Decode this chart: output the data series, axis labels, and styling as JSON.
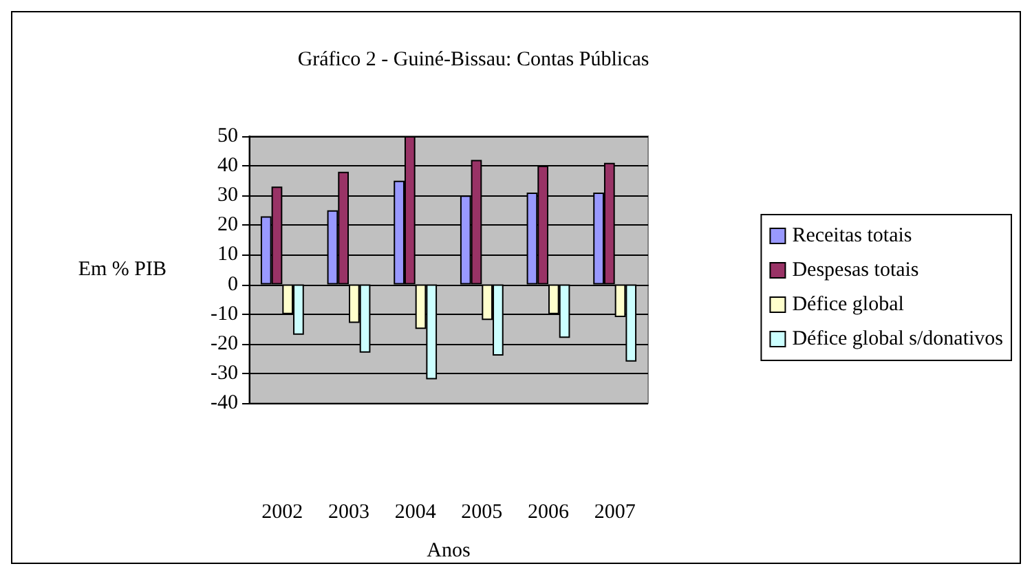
{
  "chart_data": {
    "type": "bar",
    "title": "Gráfico 2 - Guiné-Bissau: Contas Públicas",
    "xlabel": "Anos",
    "ylabel": "Em % PIB",
    "categories": [
      "2002",
      "2003",
      "2004",
      "2005",
      "2006",
      "2007"
    ],
    "series": [
      {
        "name": "Receitas totais",
        "color": "#9999ff",
        "values": [
          23,
          25,
          35,
          30,
          31,
          31
        ]
      },
      {
        "name": "Despesas totais",
        "color": "#993366",
        "values": [
          33,
          38,
          50,
          42,
          40,
          41
        ]
      },
      {
        "name": "Défice global",
        "color": "#ffffcc",
        "values": [
          -10,
          -13,
          -15,
          -12,
          -10,
          -11
        ]
      },
      {
        "name": "Défice global s/donativos",
        "color": "#ccffff",
        "values": [
          -17,
          -23,
          -32,
          -24,
          -18,
          -26
        ]
      }
    ],
    "ylim": [
      -40,
      50
    ],
    "yticks": [
      -40,
      -30,
      -20,
      -10,
      0,
      10,
      20,
      30,
      40,
      50
    ],
    "grid": "y",
    "legend": "right"
  }
}
